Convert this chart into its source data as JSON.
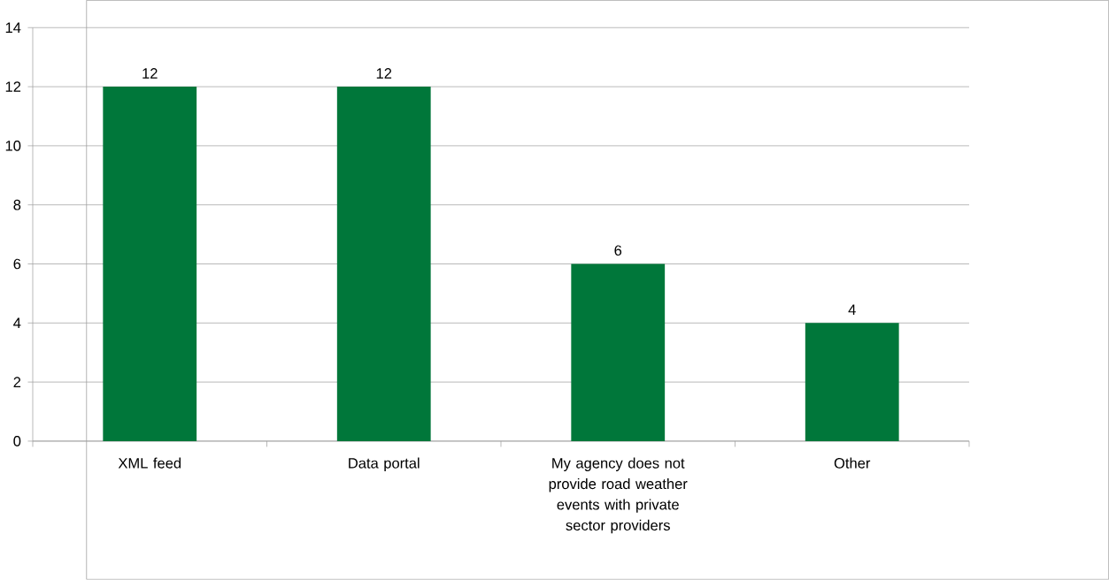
{
  "chart_data": {
    "type": "bar",
    "categories": [
      "XML feed",
      "Data portal",
      "My agency does not provide road weather events with private sector providers",
      "Other"
    ],
    "values": [
      12,
      12,
      6,
      4
    ],
    "color": "#00773a",
    "ylim": [
      0,
      14
    ],
    "yticks": [
      0,
      2,
      4,
      6,
      8,
      10,
      12,
      14
    ],
    "grid": "y",
    "data_labels": true
  }
}
